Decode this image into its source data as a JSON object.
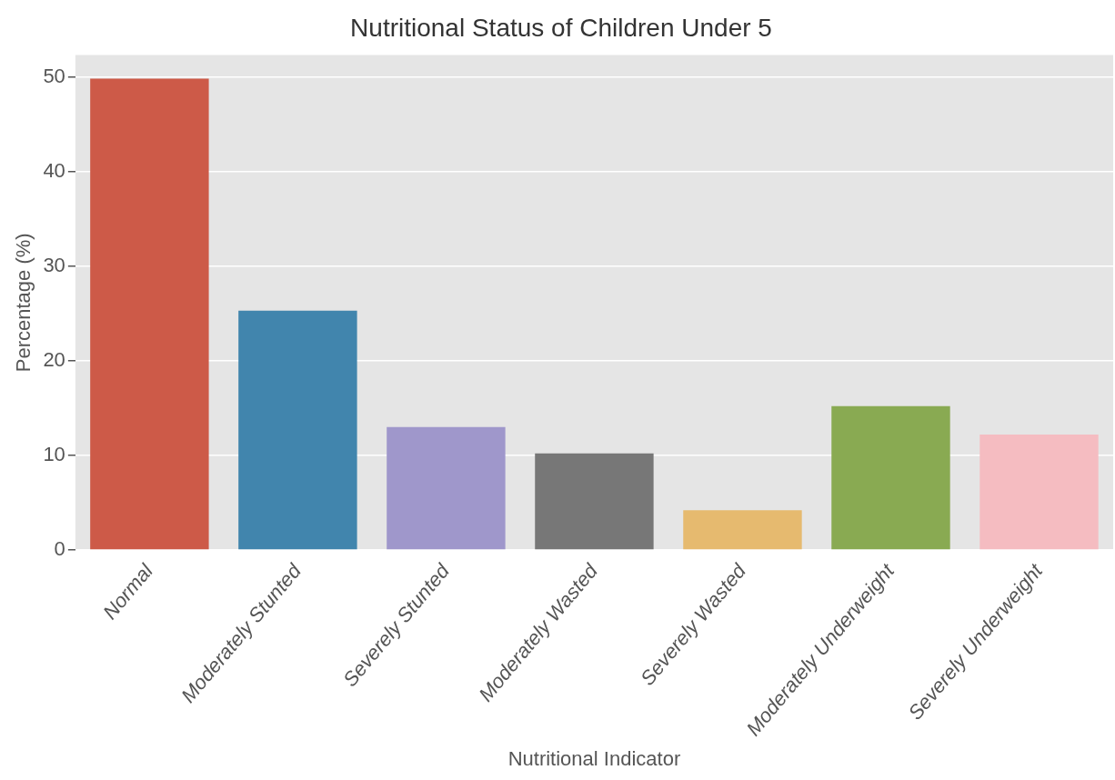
{
  "chart_data": {
    "type": "bar",
    "title": "Nutritional Status of Children Under 5",
    "xlabel": "Nutritional Indicator",
    "ylabel": "Percentage (%)",
    "categories": [
      "Normal",
      "Moderately Stunted",
      "Severely Stunted",
      "Moderately Wasted",
      "Severely Wasted",
      "Moderately Underweight",
      "Severely Underweight"
    ],
    "values": [
      49.8,
      25.3,
      13.0,
      10.2,
      4.2,
      15.2,
      12.2
    ],
    "colors": [
      "#cd5a48",
      "#4185ad",
      "#9f97cb",
      "#777777",
      "#e6ba6f",
      "#89aa52",
      "#f5bcc1"
    ],
    "ylim": [
      0,
      52.3
    ],
    "yticks": [
      0,
      10,
      20,
      30,
      40,
      50
    ],
    "grid": "y",
    "legend": false
  }
}
